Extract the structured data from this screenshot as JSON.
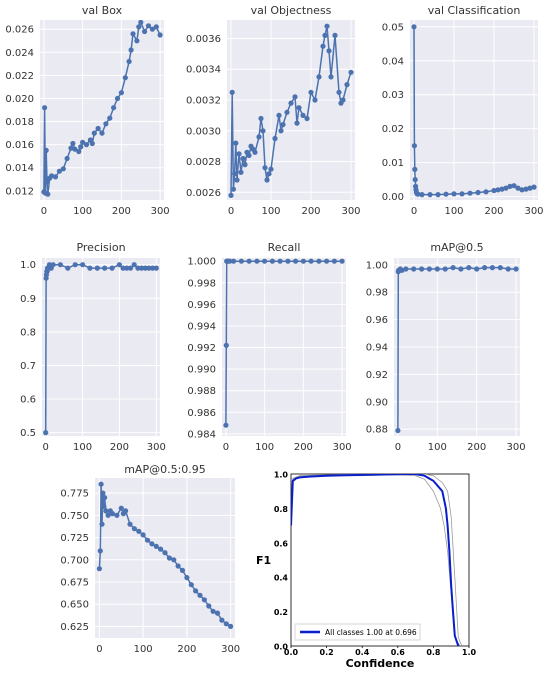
{
  "colors": {
    "panel_bg": "#eaeaf2",
    "grid": "#ffffff",
    "series": "#4c72b0",
    "f1_main": "#0a1fcc",
    "f1_thin": "#9a9a9a",
    "text": "#333333"
  },
  "chart_data": [
    {
      "id": "val_box",
      "type": "line",
      "title": "val Box",
      "xlim": [
        -10,
        310
      ],
      "ylim": [
        0.0112,
        0.0268
      ],
      "xticks": [
        0,
        100,
        200,
        300
      ],
      "yticks": [
        0.012,
        0.014,
        0.016,
        0.018,
        0.02,
        0.022,
        0.024,
        0.026
      ],
      "ytick_labels": [
        "0.012",
        "0.014",
        "0.016",
        "0.018",
        "0.020",
        "0.022",
        "0.024",
        "0.026"
      ],
      "markers": true,
      "grid": true,
      "series": [
        {
          "x": [
            0,
            2,
            4,
            6,
            8,
            10,
            15,
            20,
            30,
            40,
            50,
            60,
            70,
            75,
            80,
            90,
            95,
            100,
            110,
            120,
            125,
            130,
            140,
            150,
            160,
            170,
            180,
            190,
            200,
            210,
            220,
            225,
            230,
            240,
            245,
            250,
            260,
            270,
            280,
            290,
            300
          ],
          "y": [
            0.0119,
            0.0192,
            0.0118,
            0.0155,
            0.0128,
            0.0117,
            0.0131,
            0.0133,
            0.0132,
            0.0137,
            0.0139,
            0.0148,
            0.0157,
            0.0161,
            0.0156,
            0.0154,
            0.0158,
            0.0162,
            0.016,
            0.0164,
            0.0161,
            0.017,
            0.0174,
            0.017,
            0.0178,
            0.0183,
            0.0192,
            0.02,
            0.0205,
            0.0218,
            0.0232,
            0.0242,
            0.0256,
            0.025,
            0.0262,
            0.0266,
            0.0258,
            0.0263,
            0.026,
            0.0262,
            0.0255
          ]
        }
      ]
    },
    {
      "id": "val_objectness",
      "type": "line",
      "title": "val Objectness",
      "xlim": [
        -10,
        310
      ],
      "ylim": [
        0.00255,
        0.00372
      ],
      "xticks": [
        0,
        100,
        200,
        300
      ],
      "yticks": [
        0.0026,
        0.0028,
        0.003,
        0.0032,
        0.0034,
        0.0036
      ],
      "ytick_labels": [
        "0.0026",
        "0.0028",
        "0.0030",
        "0.0032",
        "0.0034",
        "0.0036"
      ],
      "markers": true,
      "grid": true,
      "series": [
        {
          "x": [
            0,
            3,
            6,
            9,
            12,
            15,
            20,
            25,
            30,
            35,
            40,
            45,
            50,
            55,
            60,
            70,
            75,
            80,
            85,
            90,
            95,
            100,
            110,
            120,
            125,
            130,
            140,
            150,
            160,
            165,
            170,
            180,
            190,
            200,
            210,
            220,
            230,
            235,
            240,
            245,
            250,
            260,
            270,
            275,
            280,
            290,
            300
          ],
          "y": [
            0.00258,
            0.00325,
            0.00262,
            0.00272,
            0.00292,
            0.00268,
            0.00285,
            0.00273,
            0.00282,
            0.00278,
            0.00286,
            0.00284,
            0.0029,
            0.00288,
            0.00286,
            0.00296,
            0.00308,
            0.003,
            0.00276,
            0.00268,
            0.00272,
            0.00275,
            0.00295,
            0.0031,
            0.003,
            0.00304,
            0.00312,
            0.00318,
            0.00322,
            0.00305,
            0.00315,
            0.0031,
            0.00308,
            0.00325,
            0.0032,
            0.00335,
            0.00355,
            0.00362,
            0.00368,
            0.00352,
            0.00335,
            0.00362,
            0.00325,
            0.00318,
            0.0032,
            0.0033,
            0.00338
          ]
        }
      ]
    },
    {
      "id": "val_classification",
      "type": "line",
      "title": "val Classification",
      "xlim": [
        -10,
        310
      ],
      "ylim": [
        -0.001,
        0.052
      ],
      "xticks": [
        0,
        100,
        200,
        300
      ],
      "yticks": [
        0.0,
        0.01,
        0.02,
        0.03,
        0.04,
        0.05
      ],
      "ytick_labels": [
        "0.00",
        "0.01",
        "0.02",
        "0.03",
        "0.04",
        "0.05"
      ],
      "markers": true,
      "grid": true,
      "series": [
        {
          "x": [
            0,
            1,
            2,
            3,
            4,
            5,
            6,
            8,
            10,
            20,
            40,
            60,
            80,
            100,
            120,
            140,
            160,
            180,
            200,
            210,
            220,
            230,
            240,
            250,
            260,
            270,
            280,
            290,
            300
          ],
          "y": [
            0.05,
            0.015,
            0.008,
            0.005,
            0.003,
            0.002,
            0.0012,
            0.0008,
            0.0007,
            0.0006,
            0.0006,
            0.0006,
            0.0007,
            0.0008,
            0.0008,
            0.001,
            0.0012,
            0.0014,
            0.0018,
            0.002,
            0.0022,
            0.0025,
            0.003,
            0.0032,
            0.0025,
            0.002,
            0.0022,
            0.0025,
            0.0028
          ]
        }
      ]
    },
    {
      "id": "precision",
      "type": "line",
      "title": "Precision",
      "xlim": [
        -10,
        310
      ],
      "ylim": [
        0.49,
        1.02
      ],
      "xticks": [
        0,
        100,
        200,
        300
      ],
      "yticks": [
        0.5,
        0.6,
        0.7,
        0.8,
        0.9,
        1.0
      ],
      "ytick_labels": [
        "0.5",
        "0.6",
        "0.7",
        "0.8",
        "0.9",
        "1.0"
      ],
      "markers": true,
      "grid": true,
      "series": [
        {
          "x": [
            0,
            1,
            2,
            3,
            4,
            5,
            6,
            8,
            10,
            15,
            20,
            40,
            60,
            80,
            100,
            120,
            140,
            160,
            180,
            200,
            210,
            220,
            230,
            240,
            250,
            260,
            270,
            280,
            290,
            300
          ],
          "y": [
            0.5,
            0.96,
            0.97,
            0.98,
            0.98,
            0.99,
            0.99,
            0.99,
            1.0,
            0.99,
            1.0,
            1.0,
            0.99,
            1.0,
            1.0,
            0.99,
            0.99,
            0.99,
            0.99,
            1.0,
            0.99,
            0.99,
            0.99,
            1.0,
            0.99,
            0.99,
            0.99,
            0.99,
            0.99,
            0.99
          ]
        }
      ]
    },
    {
      "id": "recall",
      "type": "line",
      "title": "Recall",
      "xlim": [
        -10,
        310
      ],
      "ylim": [
        0.9838,
        1.0003
      ],
      "xticks": [
        0,
        100,
        200,
        300
      ],
      "yticks": [
        0.984,
        0.986,
        0.988,
        0.99,
        0.992,
        0.994,
        0.996,
        0.998,
        1.0
      ],
      "ytick_labels": [
        "0.984",
        "0.986",
        "0.988",
        "0.990",
        "0.992",
        "0.994",
        "0.996",
        "0.998",
        "1.000"
      ],
      "markers": true,
      "grid": true,
      "series": [
        {
          "x": [
            0,
            1,
            2,
            3,
            4,
            6,
            10,
            20,
            40,
            60,
            80,
            100,
            120,
            140,
            160,
            180,
            200,
            220,
            240,
            260,
            280,
            300
          ],
          "y": [
            0.9848,
            0.9922,
            1.0,
            1.0,
            1.0,
            1.0,
            1.0,
            1.0,
            1.0,
            1.0,
            1.0,
            1.0,
            1.0,
            1.0,
            1.0,
            1.0,
            1.0,
            1.0,
            1.0,
            1.0,
            1.0,
            1.0
          ]
        }
      ]
    },
    {
      "id": "map05",
      "type": "line",
      "title": "mAP@0.5",
      "xlim": [
        -10,
        310
      ],
      "ylim": [
        0.875,
        1.005
      ],
      "xticks": [
        0,
        100,
        200,
        300
      ],
      "yticks": [
        0.88,
        0.9,
        0.92,
        0.94,
        0.96,
        0.98,
        1.0
      ],
      "ytick_labels": [
        "0.88",
        "0.90",
        "0.92",
        "0.94",
        "0.96",
        "0.98",
        "1.00"
      ],
      "markers": true,
      "grid": true,
      "series": [
        {
          "x": [
            0,
            1,
            2,
            4,
            6,
            10,
            20,
            40,
            60,
            80,
            100,
            120,
            140,
            160,
            180,
            200,
            220,
            240,
            260,
            280,
            300
          ],
          "y": [
            0.879,
            0.995,
            0.996,
            0.996,
            0.997,
            0.996,
            0.997,
            0.997,
            0.997,
            0.997,
            0.997,
            0.997,
            0.998,
            0.997,
            0.998,
            0.997,
            0.998,
            0.998,
            0.998,
            0.997,
            0.997
          ]
        }
      ]
    },
    {
      "id": "map0595",
      "type": "line",
      "title": "mAP@0.5:0.95",
      "xlim": [
        -10,
        310
      ],
      "ylim": [
        0.612,
        0.792
      ],
      "xticks": [
        0,
        100,
        200,
        300
      ],
      "yticks": [
        0.625,
        0.65,
        0.675,
        0.7,
        0.725,
        0.75,
        0.775
      ],
      "ytick_labels": [
        "0.625",
        "0.650",
        "0.675",
        "0.700",
        "0.725",
        "0.750",
        "0.775"
      ],
      "markers": true,
      "grid": true,
      "series": [
        {
          "x": [
            0,
            2,
            4,
            6,
            8,
            10,
            12,
            15,
            20,
            25,
            30,
            40,
            50,
            55,
            60,
            70,
            80,
            90,
            100,
            110,
            120,
            130,
            140,
            150,
            160,
            170,
            180,
            190,
            200,
            210,
            220,
            230,
            240,
            250,
            260,
            270,
            280,
            290,
            300
          ],
          "y": [
            0.69,
            0.71,
            0.785,
            0.74,
            0.775,
            0.76,
            0.77,
            0.755,
            0.75,
            0.755,
            0.752,
            0.75,
            0.758,
            0.752,
            0.755,
            0.74,
            0.735,
            0.732,
            0.728,
            0.722,
            0.718,
            0.715,
            0.712,
            0.708,
            0.702,
            0.7,
            0.693,
            0.688,
            0.68,
            0.672,
            0.665,
            0.66,
            0.655,
            0.648,
            0.642,
            0.64,
            0.632,
            0.628,
            0.625
          ]
        }
      ]
    },
    {
      "id": "f1_confidence",
      "type": "line",
      "title": "",
      "xlabel": "Confidence",
      "ylabel": "F1",
      "xlim": [
        0,
        1
      ],
      "ylim": [
        0,
        1
      ],
      "xticks": [
        0.0,
        0.2,
        0.4,
        0.6,
        0.8,
        1.0
      ],
      "yticks": [
        0.0,
        0.2,
        0.4,
        0.6,
        0.8,
        1.0
      ],
      "xtick_labels": [
        "0.0",
        "0.2",
        "0.4",
        "0.6",
        "0.8",
        "1.0"
      ],
      "ytick_labels": [
        "0.0",
        "0.2",
        "0.4",
        "0.6",
        "0.8",
        "1.0"
      ],
      "markers": false,
      "grid": false,
      "legend": {
        "placement": "bottom-left",
        "label": "All classes 1.00 at 0.696"
      },
      "thin_series": [
        {
          "x": [
            0,
            0.01,
            0.05,
            0.2,
            0.4,
            0.6,
            0.7,
            0.75,
            0.8,
            0.82,
            0.84,
            0.86,
            0.88,
            0.9,
            0.92,
            0.95
          ],
          "y": [
            0.7,
            0.97,
            0.985,
            0.99,
            0.99,
            0.995,
            0.99,
            0.97,
            0.9,
            0.85,
            0.8,
            0.7,
            0.55,
            0.3,
            0.05,
            0.0
          ]
        },
        {
          "x": [
            0,
            0.01,
            0.05,
            0.2,
            0.4,
            0.6,
            0.7,
            0.75,
            0.8,
            0.85,
            0.88,
            0.9,
            0.92,
            0.94,
            0.96
          ],
          "y": [
            0.7,
            0.975,
            0.99,
            0.995,
            1.0,
            1.0,
            1.0,
            1.0,
            0.99,
            0.95,
            0.9,
            0.75,
            0.4,
            0.05,
            0.0
          ]
        }
      ],
      "series": [
        {
          "x": [
            0,
            0.01,
            0.03,
            0.05,
            0.1,
            0.2,
            0.3,
            0.4,
            0.5,
            0.6,
            0.65,
            0.696,
            0.75,
            0.8,
            0.85,
            0.87,
            0.88,
            0.89,
            0.9,
            0.91,
            0.92,
            0.93,
            0.94
          ],
          "y": [
            0.7,
            0.96,
            0.975,
            0.98,
            0.985,
            0.99,
            0.993,
            0.995,
            0.997,
            0.999,
            1.0,
            1.0,
            0.99,
            0.96,
            0.9,
            0.8,
            0.7,
            0.55,
            0.35,
            0.2,
            0.06,
            0.03,
            0.0
          ]
        }
      ]
    }
  ]
}
